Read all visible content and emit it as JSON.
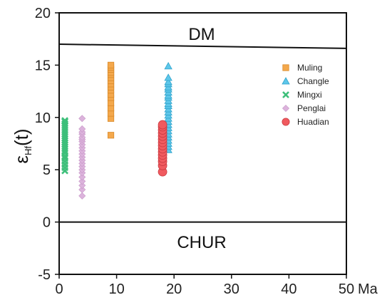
{
  "chart_data": {
    "type": "scatter",
    "xlim": [
      0,
      50
    ],
    "ylim": [
      -5,
      20
    ],
    "x_ticks": [
      "0",
      "10",
      "20",
      "30",
      "40",
      "50"
    ],
    "x_unit": "Ma",
    "y_ticks": [
      "-5",
      "0",
      "5",
      "10",
      "15",
      "20"
    ],
    "ylabel": {
      "main": "ε",
      "sub": "Hf",
      "suffix": "(t)"
    },
    "regions": {
      "dm_label": "DM",
      "chur_label": "CHUR",
      "dm_line": {
        "x": [
          0,
          50
        ],
        "y": [
          17.0,
          16.6
        ]
      },
      "chur_line": {
        "x": [
          0,
          50
        ],
        "y": [
          0,
          0
        ]
      }
    },
    "legend": {
      "placement": "top-right"
    },
    "series": [
      {
        "name": "Muling",
        "marker": "square",
        "color": "#f4a84c",
        "stroke": "#d98a2b",
        "x": [
          9,
          9,
          9,
          9,
          9,
          9,
          9,
          9,
          9,
          9,
          9,
          9,
          9,
          9,
          9,
          9,
          9
        ],
        "y": [
          8.3,
          9.9,
          10.4,
          10.9,
          11.4,
          11.9,
          12.2,
          12.6,
          12.9,
          13.2,
          13.5,
          13.8,
          14.1,
          14.3,
          14.6,
          14.8,
          15.0
        ]
      },
      {
        "name": "Changle",
        "marker": "triangle",
        "color": "#5ec7ea",
        "stroke": "#2ea3cc",
        "x": [
          19,
          19,
          19,
          19,
          19,
          19,
          19,
          19,
          19,
          19,
          19,
          19,
          19,
          19,
          19,
          19,
          19,
          19,
          19,
          19,
          19,
          19,
          19,
          19,
          19,
          19
        ],
        "y": [
          6.9,
          7.2,
          7.5,
          7.8,
          8.1,
          8.4,
          8.7,
          9.0,
          9.3,
          9.6,
          9.9,
          10.2,
          10.5,
          10.8,
          11.1,
          11.3,
          11.6,
          11.9,
          12.1,
          12.4,
          12.7,
          12.9,
          13.2,
          13.4,
          13.8,
          14.9
        ]
      },
      {
        "name": "Mingxi",
        "marker": "x",
        "color": "#3dbf7a",
        "stroke": "#2ea866",
        "x": [
          1,
          1,
          1,
          1,
          1,
          1,
          1,
          1,
          1,
          1,
          1,
          1,
          1,
          1,
          1,
          1,
          1,
          1,
          1,
          1,
          1,
          1,
          1
        ],
        "y": [
          4.9,
          5.2,
          5.5,
          5.8,
          6.1,
          6.3,
          6.6,
          6.8,
          7.0,
          7.2,
          7.4,
          7.6,
          7.8,
          8.0,
          8.2,
          8.4,
          8.6,
          8.8,
          9.0,
          9.2,
          9.4,
          9.6,
          9.7
        ]
      },
      {
        "name": "Penglai",
        "marker": "diamond",
        "color": "#dcb3dc",
        "stroke": "#c797c7",
        "x": [
          4,
          4,
          4,
          4,
          4,
          4,
          4,
          4,
          4,
          4,
          4,
          4,
          4,
          4,
          4,
          4,
          4,
          4,
          4,
          4,
          4,
          4
        ],
        "y": [
          2.5,
          3.1,
          3.5,
          3.9,
          4.3,
          4.7,
          5.0,
          5.3,
          5.6,
          5.9,
          6.2,
          6.5,
          6.8,
          7.1,
          7.4,
          7.7,
          7.9,
          8.1,
          8.4,
          8.6,
          8.9,
          9.9
        ]
      },
      {
        "name": "Huadian",
        "marker": "circle",
        "color": "#f05a5f",
        "stroke": "#c93a40",
        "x": [
          18,
          18,
          18,
          18,
          18,
          18,
          18,
          18,
          18,
          18,
          18,
          18,
          18,
          18,
          18
        ],
        "y": [
          4.8,
          5.4,
          5.8,
          6.1,
          6.4,
          6.7,
          7.0,
          7.3,
          7.6,
          7.9,
          8.2,
          8.5,
          8.8,
          9.1,
          9.3
        ]
      }
    ]
  }
}
